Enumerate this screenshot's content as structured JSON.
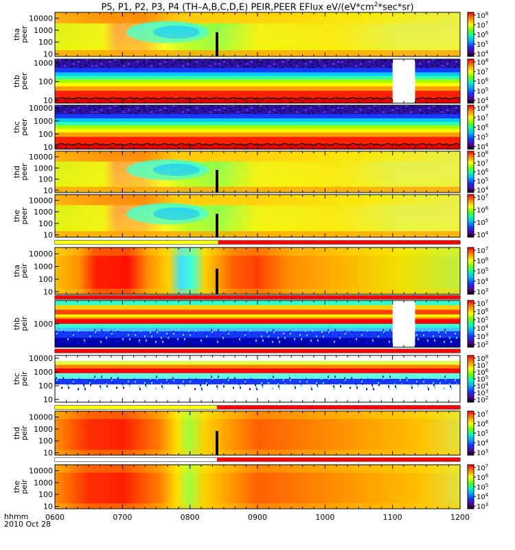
{
  "title": "P5, P1, P2, P3, P4 (TH–A,B,C,D,E) PEIR,PEER EFlux eV/(eV*cm2*sec*sr)",
  "title_parts": {
    "main": "P5, P1, P2, P3, P4 (TH–A,B,C,D,E) PEIR,PEER EFlux eV/(eV*cm",
    "sup": "2",
    "tail": "*sec*sr)"
  },
  "footer": {
    "time_label": "hhmm",
    "date_label": "2010 Oct 28"
  },
  "chart_data": [
    {
      "type": "heatmap",
      "name": "tha peer",
      "ylabel": [
        "tha",
        "peer"
      ],
      "yticks": [
        "10000",
        "1000",
        "100",
        "10"
      ],
      "ytick_values": [
        10000,
        1000,
        100,
        10
      ],
      "ylog": true,
      "colorbar_ticks": [
        "10^8",
        "10^7",
        "10^6",
        "10^5",
        "10^4"
      ],
      "colorbar_values": [
        100000000,
        10000000,
        1000000,
        100000,
        10000
      ]
    },
    {
      "type": "heatmap",
      "name": "thb peer",
      "ylabel": [
        "thb",
        "peer"
      ],
      "yticks": [
        "1000",
        "100",
        "10"
      ],
      "ytick_values": [
        1000,
        100,
        10
      ],
      "ylog": true,
      "colorbar_ticks": [
        "10^8",
        "10^7",
        "10^6",
        "10^5",
        "10^4"
      ],
      "colorbar_values": [
        100000000,
        10000000,
        1000000,
        100000,
        10000
      ],
      "gap": [
        "1060",
        "1080"
      ]
    },
    {
      "type": "heatmap",
      "name": "thc peer",
      "ylabel": [
        "thc",
        "peer"
      ],
      "yticks": [
        "10000",
        "1000",
        "100",
        "10"
      ],
      "ytick_values": [
        10000,
        1000,
        100,
        10
      ],
      "ylog": true,
      "colorbar_ticks": [
        "10^8",
        "10^7",
        "10^6",
        "10^5",
        "10^4"
      ],
      "colorbar_values": [
        100000000,
        10000000,
        1000000,
        100000,
        10000
      ]
    },
    {
      "type": "heatmap",
      "name": "thd peer",
      "ylabel": [
        "thd",
        "peer"
      ],
      "yticks": [
        "10000",
        "1000",
        "100",
        "10"
      ],
      "ytick_values": [
        10000,
        1000,
        100,
        10
      ],
      "ylog": true,
      "colorbar_ticks": [
        "10^8",
        "10^7",
        "10^6",
        "10^5",
        "10^4"
      ],
      "colorbar_values": [
        100000000,
        10000000,
        1000000,
        100000,
        10000
      ]
    },
    {
      "type": "heatmap",
      "name": "the peer",
      "ylabel": [
        "the",
        "peer"
      ],
      "yticks": [
        "10000",
        "1000",
        "100",
        "10"
      ],
      "ytick_values": [
        10000,
        1000,
        100,
        10
      ],
      "ylog": true,
      "colorbar_ticks": [
        "10^7",
        "10^6",
        "10^5",
        "10^4"
      ],
      "colorbar_values": [
        10000000,
        1000000,
        100000,
        10000
      ]
    },
    {
      "type": "heatmap",
      "name": "tha peir",
      "ylabel": [
        "tha",
        "peir"
      ],
      "yticks": [
        "10000",
        "1000",
        "100",
        "10"
      ],
      "ytick_values": [
        10000,
        1000,
        100,
        10
      ],
      "ylog": true,
      "colorbar_ticks": [
        "10^7",
        "10^6",
        "10^5",
        "10^4",
        "10^3"
      ],
      "colorbar_values": [
        10000000,
        1000000,
        100000,
        10000,
        1000
      ]
    },
    {
      "type": "heatmap",
      "name": "thb peir",
      "ylabel": [
        "thb",
        "peir"
      ],
      "yticks": [
        "1000"
      ],
      "ytick_values": [
        1000
      ],
      "ylog": true,
      "colorbar_ticks": [
        "10^7",
        "10^6",
        "10^5",
        "10^4",
        "10^3",
        "10^2"
      ],
      "colorbar_values": [
        10000000,
        1000000,
        100000,
        10000,
        1000,
        100
      ],
      "gap": [
        "1060",
        "1080"
      ]
    },
    {
      "type": "heatmap",
      "name": "thc peir",
      "ylabel": [
        "thc",
        "peir"
      ],
      "yticks": [
        "10000",
        "1000",
        "100",
        "10"
      ],
      "ytick_values": [
        10000,
        1000,
        100,
        10
      ],
      "ylog": true,
      "colorbar_ticks": [
        "10^8",
        "10^7",
        "10^6",
        "10^5",
        "10^4",
        "10^3",
        "10^2"
      ],
      "colorbar_values": [
        100000000,
        10000000,
        1000000,
        100000,
        10000,
        1000,
        100
      ]
    },
    {
      "type": "heatmap",
      "name": "thd peir",
      "ylabel": [
        "thd",
        "peir"
      ],
      "yticks": [
        "10000",
        "1000",
        "100",
        "10"
      ],
      "ytick_values": [
        10000,
        1000,
        100,
        10
      ],
      "ylog": true,
      "colorbar_ticks": [
        "10^7",
        "10^6",
        "10^5",
        "10^4",
        "10^3"
      ],
      "colorbar_values": [
        10000000,
        1000000,
        100000,
        10000,
        1000
      ]
    },
    {
      "type": "heatmap",
      "name": "the peir",
      "ylabel": [
        "the",
        "peir"
      ],
      "yticks": [
        "10000",
        "1000",
        "100",
        "10"
      ],
      "ytick_values": [
        10000,
        1000,
        100,
        10
      ],
      "ylog": true,
      "colorbar_ticks": [
        "10^7",
        "10^6",
        "10^5",
        "10^4",
        "10^3"
      ],
      "colorbar_values": [
        10000000,
        1000000,
        100000,
        10000,
        1000
      ]
    }
  ],
  "xaxis": {
    "ticks": [
      "0600",
      "0700",
      "0800",
      "0900",
      "1000",
      "1100",
      "1200"
    ],
    "range": [
      "0600",
      "1200"
    ]
  }
}
